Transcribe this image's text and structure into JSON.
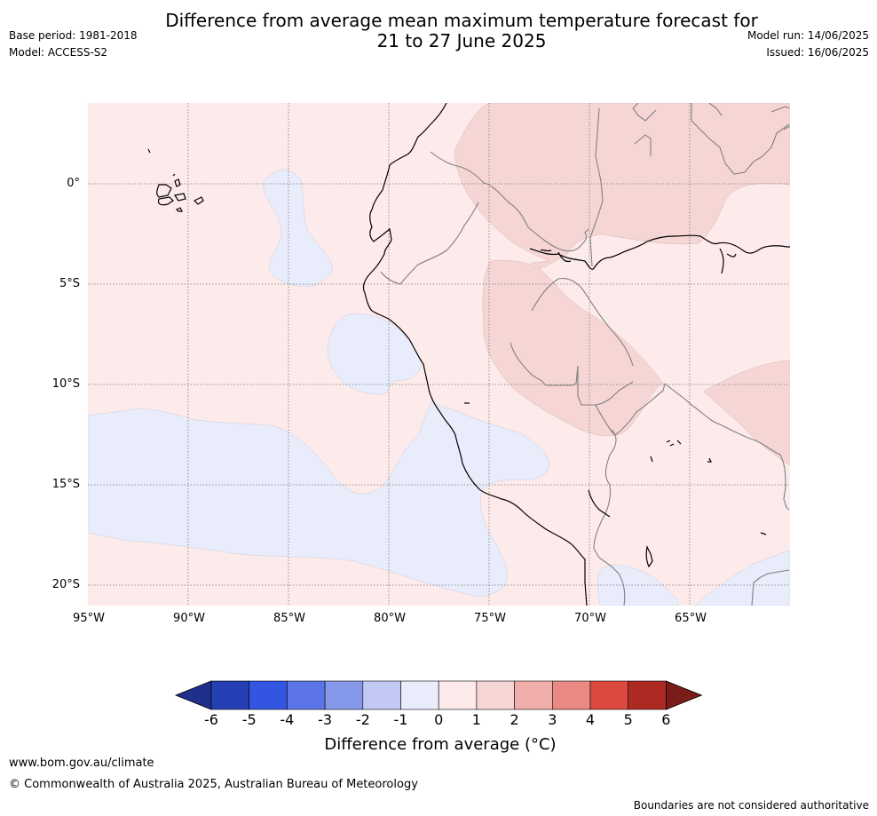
{
  "header": {
    "title_line1": "Difference from average mean maximum temperature forecast for",
    "title_line2": "21 to 27 June 2025",
    "base_period": "Base period: 1981-2018",
    "model": "Model: ACCESS-S2",
    "model_run": "Model run: 14/06/2025",
    "issued": "Issued: 16/06/2025"
  },
  "map": {
    "lat_labels": [
      "0°",
      "5°S",
      "10°S",
      "15°S",
      "20°S"
    ],
    "lon_labels": [
      "95°W",
      "90°W",
      "85°W",
      "80°W",
      "75°W",
      "70°W",
      "65°W"
    ],
    "colors": {
      "zero_to_one": "#fcebea",
      "one_to_two": "#f6d6d4",
      "minus_one_to_zero": "#e8ecfb",
      "grid": "#777777",
      "coast": "#000000",
      "border": "#808080"
    }
  },
  "colorbar": {
    "ticks": [
      "-6",
      "-5",
      "-4",
      "-3",
      "-2",
      "-1",
      "0",
      "1",
      "2",
      "3",
      "4",
      "5",
      "6"
    ],
    "colors": [
      "#1f2f8c",
      "#253fb4",
      "#3454e2",
      "#5c75e6",
      "#8598ea",
      "#c1c9f4",
      "#e8ecfb",
      "#fcebea",
      "#f6d6d4",
      "#efaeaa",
      "#e88a83",
      "#dc4a3f",
      "#ad2a23",
      "#7a1c18"
    ],
    "label": "Difference from average (°C)"
  },
  "footer": {
    "website": "www.bom.gov.au/climate",
    "copyright": "© Commonwealth of Australia 2025, Australian Bureau of Meteorology",
    "disclaimer": "Boundaries are not considered authoritative"
  }
}
